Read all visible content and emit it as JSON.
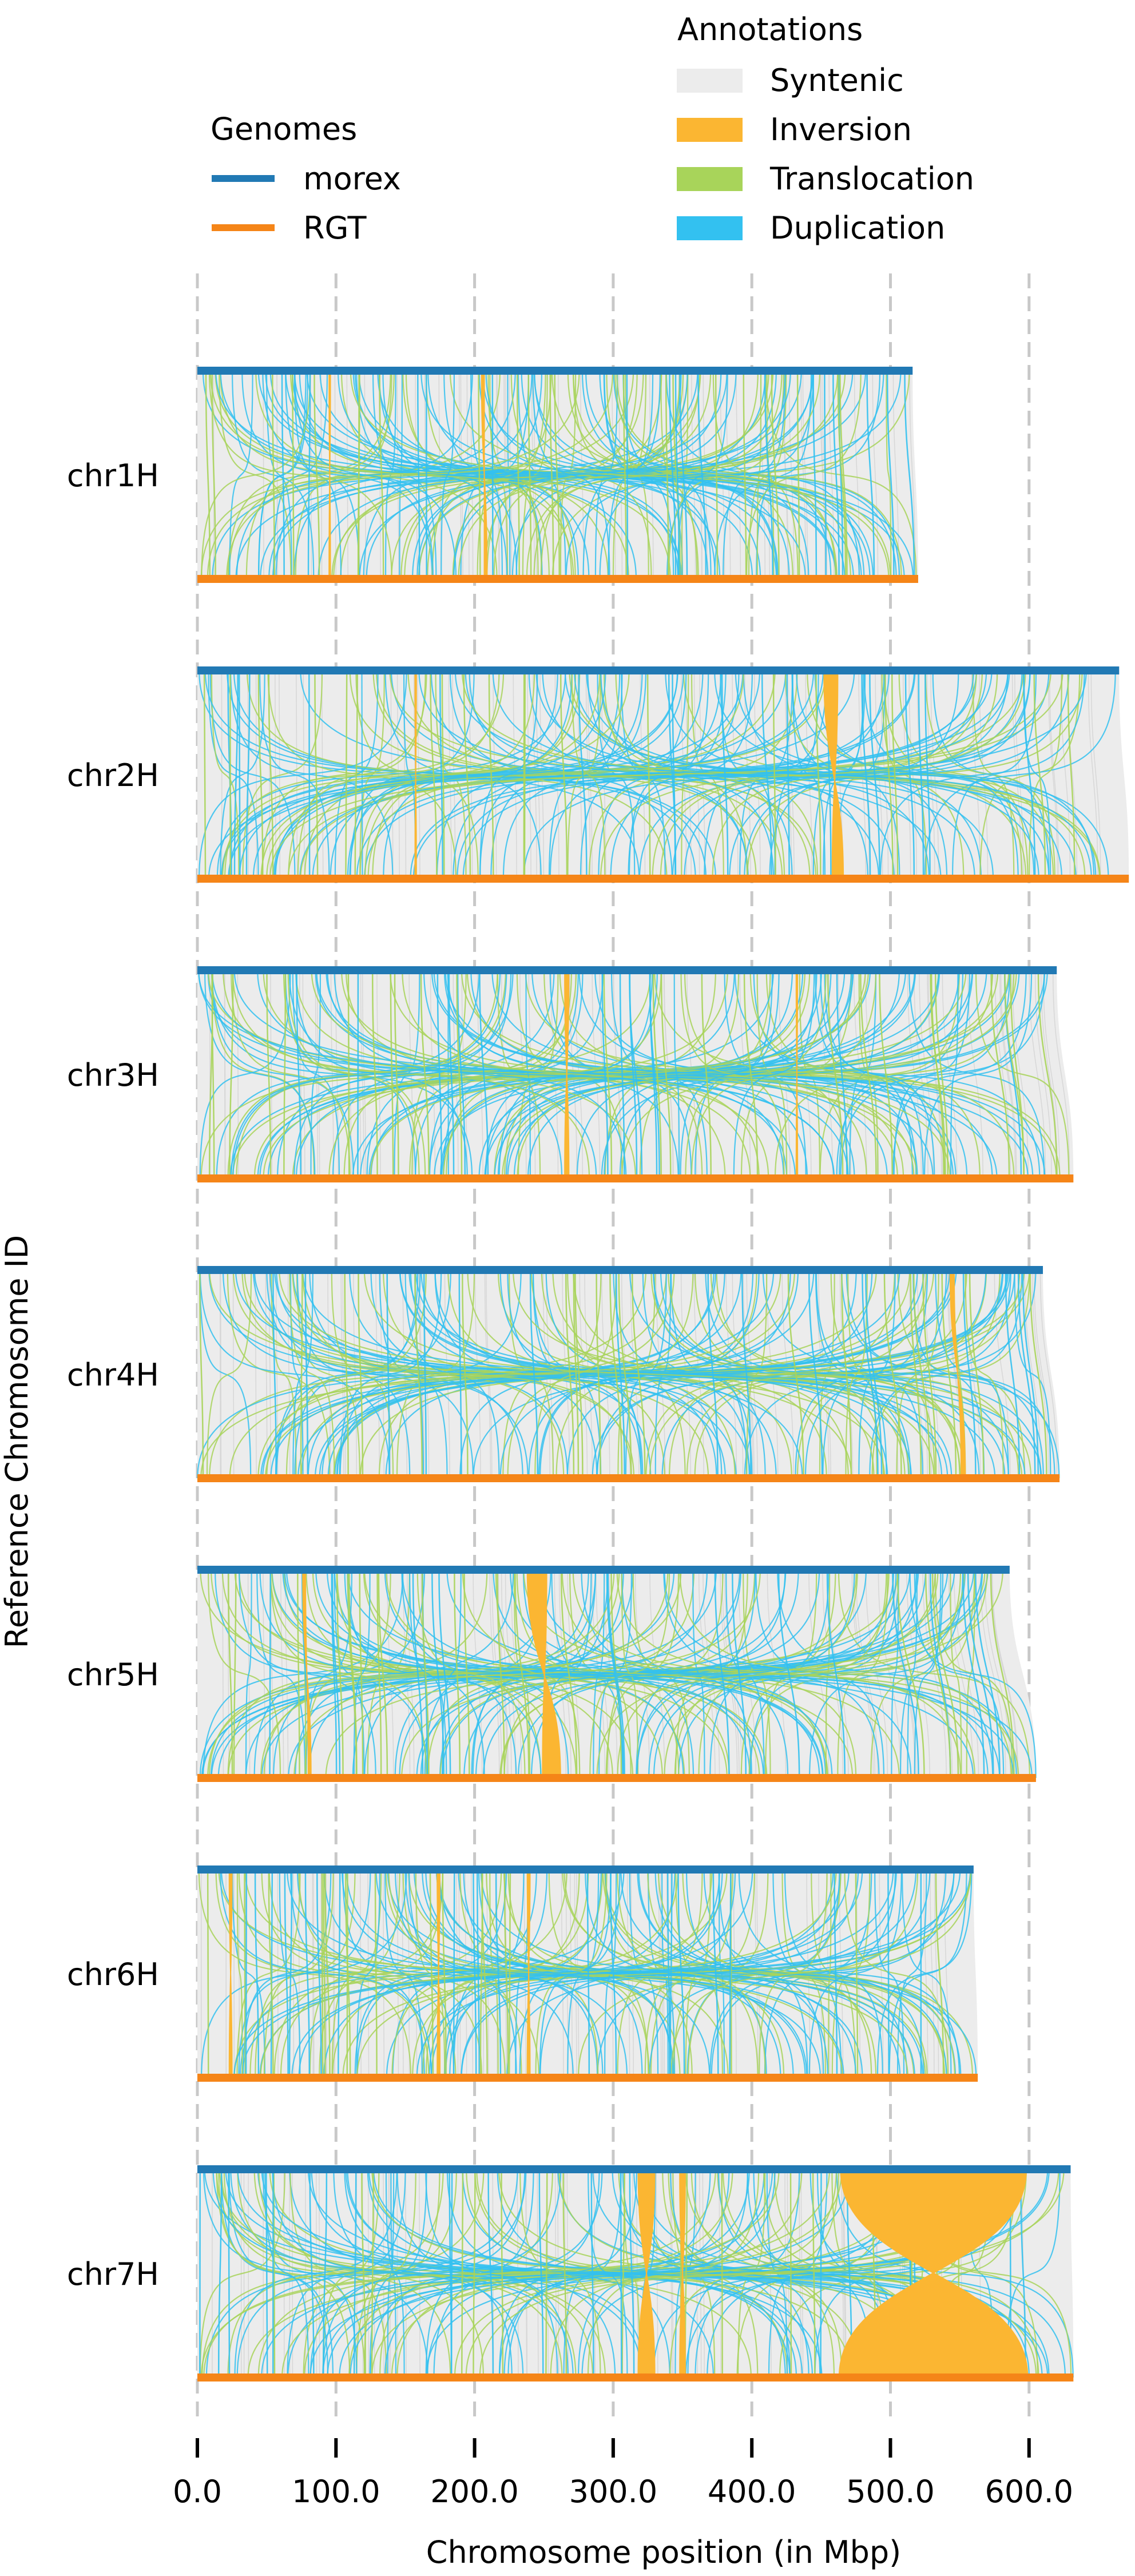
{
  "chart_data": {
    "type": "synteny",
    "ylabel": "Reference Chromosome ID",
    "xlabel": "Chromosome position (in Mbp)",
    "xlim": [
      0,
      640
    ],
    "x_ticks": [
      0,
      100,
      200,
      300,
      400,
      500,
      600
    ],
    "x_tick_labels": [
      "0.0",
      "100.0",
      "200.0",
      "300.0",
      "400.0",
      "500.0",
      "600.0"
    ],
    "grid": "vertical dashed",
    "legend_genomes": {
      "title": "Genomes",
      "items": [
        {
          "label": "morex",
          "color": "#2179b4"
        },
        {
          "label": "RGT",
          "color": "#f58518"
        }
      ]
    },
    "legend_annotations": {
      "title": "Annotations",
      "items": [
        {
          "label": "Syntenic",
          "color": "#ececec"
        },
        {
          "label": "Inversion",
          "color": "#fbb632"
        },
        {
          "label": "Translocation",
          "color": "#a8d45a"
        },
        {
          "label": "Duplication",
          "color": "#33c1f0"
        }
      ]
    },
    "chromosomes": [
      {
        "id": "chr1H",
        "morex_len": 516,
        "rgt_len": 520,
        "inversions": [
          [
            95,
            96,
            95,
            96
          ],
          [
            205,
            207,
            207,
            209
          ]
        ]
      },
      {
        "id": "chr2H",
        "morex_len": 665,
        "rgt_len": 672,
        "inversions": [
          [
            157,
            158,
            157,
            158
          ],
          [
            452,
            462,
            458,
            466
          ]
        ]
      },
      {
        "id": "chr3H",
        "morex_len": 620,
        "rgt_len": 632,
        "inversions": [
          [
            265,
            268,
            265,
            268
          ],
          [
            432,
            433,
            432,
            433
          ]
        ]
      },
      {
        "id": "chr4H",
        "morex_len": 610,
        "rgt_len": 622,
        "inversions": [
          [
            543,
            546,
            551,
            554
          ]
        ]
      },
      {
        "id": "chr5H",
        "morex_len": 586,
        "rgt_len": 605,
        "inversions": [
          [
            76,
            78,
            80,
            82
          ],
          [
            238,
            252,
            249,
            262
          ]
        ]
      },
      {
        "id": "chr6H",
        "morex_len": 560,
        "rgt_len": 563,
        "inversions": [
          [
            23,
            25,
            23,
            25
          ],
          [
            173,
            175,
            173,
            175
          ],
          [
            238,
            240,
            238,
            240
          ]
        ]
      },
      {
        "id": "chr7H",
        "morex_len": 630,
        "rgt_len": 632,
        "inversions": [
          [
            318,
            330,
            318,
            330
          ],
          [
            348,
            352,
            348,
            352
          ],
          [
            464,
            598,
            463,
            599
          ]
        ]
      }
    ]
  }
}
